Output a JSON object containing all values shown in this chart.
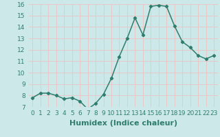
{
  "x": [
    0,
    1,
    2,
    3,
    4,
    5,
    6,
    7,
    8,
    9,
    10,
    11,
    12,
    13,
    14,
    15,
    16,
    17,
    18,
    19,
    20,
    21,
    22,
    23
  ],
  "y": [
    7.8,
    8.2,
    8.2,
    8.0,
    7.7,
    7.8,
    7.5,
    6.8,
    7.3,
    8.1,
    9.5,
    11.4,
    13.0,
    14.8,
    13.3,
    15.8,
    15.9,
    15.8,
    14.1,
    12.7,
    12.2,
    11.5,
    11.2,
    11.5
  ],
  "xlabel": "Humidex (Indice chaleur)",
  "ylim": [
    7,
    16
  ],
  "xlim": [
    -0.5,
    23.5
  ],
  "yticks": [
    7,
    8,
    9,
    10,
    11,
    12,
    13,
    14,
    15,
    16
  ],
  "xticks": [
    0,
    1,
    2,
    3,
    4,
    5,
    6,
    7,
    8,
    9,
    10,
    11,
    12,
    13,
    14,
    15,
    16,
    17,
    18,
    19,
    20,
    21,
    22,
    23
  ],
  "xtick_labels": [
    "0",
    "1",
    "2",
    "3",
    "4",
    "5",
    "6",
    "7",
    "8",
    "9",
    "10",
    "11",
    "12",
    "13",
    "14",
    "15",
    "16",
    "17",
    "18",
    "19",
    "20",
    "21",
    "22",
    "23"
  ],
  "line_color": "#2e7d6e",
  "marker": "D",
  "marker_size": 2.2,
  "line_width": 1.1,
  "bg_color": "#cce8e8",
  "grid_color": "#e8c8c8",
  "tick_label_fontsize": 6.5,
  "xlabel_fontsize": 8.0
}
